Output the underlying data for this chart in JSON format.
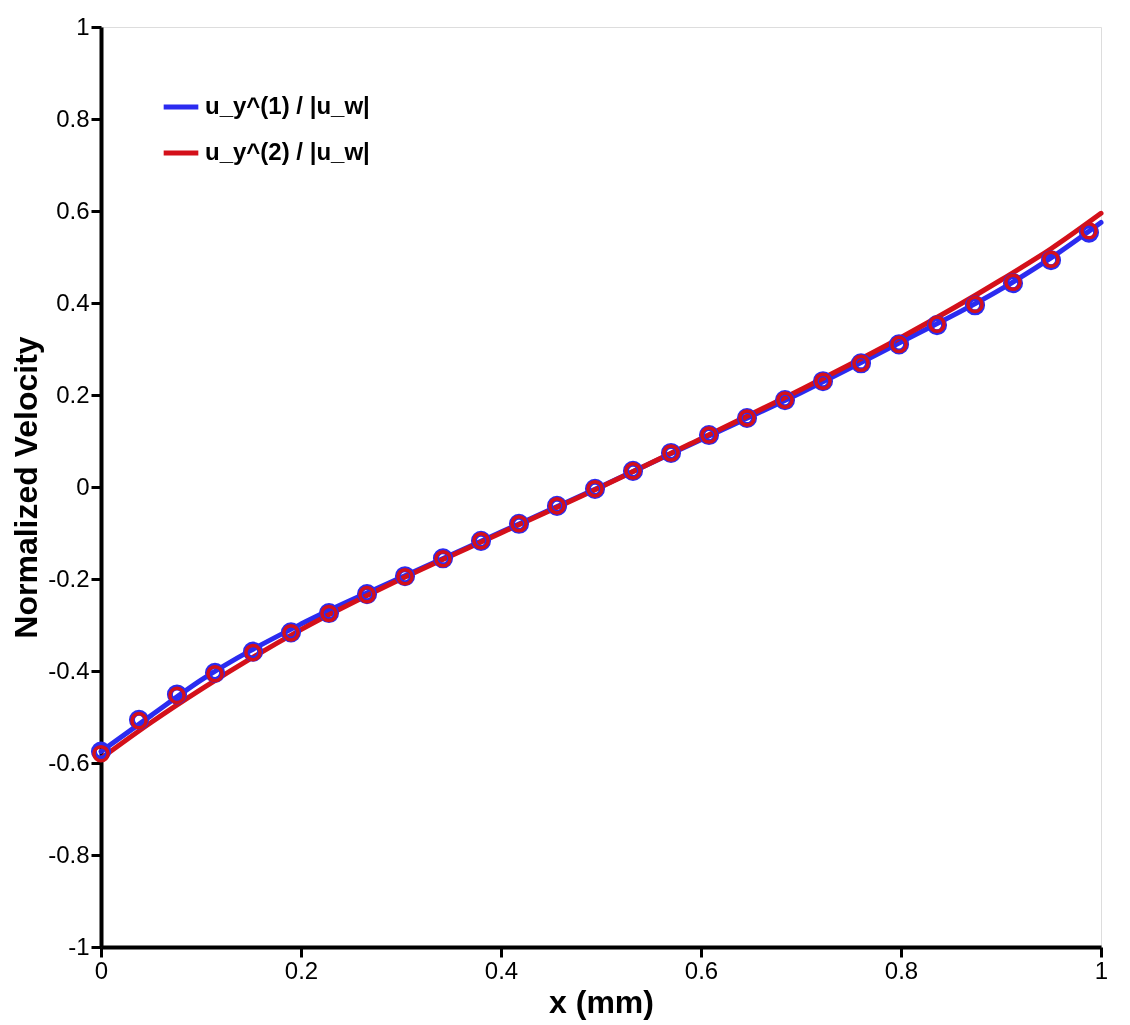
{
  "chart_data": {
    "type": "line",
    "xlabel": "x (mm)",
    "ylabel": "Normalized Velocity",
    "xlim": [
      0,
      1
    ],
    "ylim": [
      -1,
      1
    ],
    "xticks": [
      0,
      0.2,
      0.4,
      0.6,
      0.8,
      1
    ],
    "yticks": [
      -1,
      -0.8,
      -0.6,
      -0.4,
      -0.2,
      0,
      0.2,
      0.4,
      0.6,
      0.8,
      1
    ],
    "grid": false,
    "legend": "top left",
    "series": [
      {
        "name": "u_y^(1) / |u_w|",
        "color": "#2b2bf0",
        "line_style": "solid",
        "x": [
          0,
          0.05,
          0.1,
          0.2,
          0.3,
          0.4,
          0.5,
          0.6,
          0.7,
          0.8,
          0.9,
          0.95,
          1
        ],
        "values": [
          -0.575,
          -0.497,
          -0.42,
          -0.298,
          -0.197,
          -0.098,
          0.001,
          0.103,
          0.205,
          0.315,
          0.43,
          0.498,
          0.575
        ]
      },
      {
        "name": "u_y^(2) / |u_w|",
        "color": "#d4101a",
        "line_style": "solid",
        "x": [
          0,
          0.05,
          0.1,
          0.2,
          0.3,
          0.4,
          0.5,
          0.6,
          0.7,
          0.8,
          0.9,
          0.95,
          1
        ],
        "values": [
          -0.59,
          -0.512,
          -0.44,
          -0.31,
          -0.2,
          -0.1,
          0.0,
          0.105,
          0.212,
          0.325,
          0.45,
          0.518,
          0.595
        ]
      },
      {
        "color": "#2b2bf0",
        "type": "scatter",
        "marker": "circle",
        "x": [
          0,
          0.038,
          0.076,
          0.114,
          0.152,
          0.19,
          0.228,
          0.266,
          0.304,
          0.342,
          0.38,
          0.418,
          0.456,
          0.494,
          0.532,
          0.57,
          0.608,
          0.646,
          0.684,
          0.722,
          0.76,
          0.798,
          0.836,
          0.874,
          0.912,
          0.95,
          0.988
        ],
        "values": [
          -0.575,
          -0.506,
          -0.451,
          -0.404,
          -0.358,
          -0.316,
          -0.274,
          -0.233,
          -0.194,
          -0.155,
          -0.117,
          -0.08,
          -0.041,
          -0.004,
          0.035,
          0.074,
          0.113,
          0.15,
          0.189,
          0.23,
          0.269,
          0.31,
          0.352,
          0.395,
          0.443,
          0.493,
          0.553
        ]
      },
      {
        "color": "#d4101a",
        "type": "scatter",
        "marker": "circle",
        "x": [
          0,
          0.038,
          0.076,
          0.114,
          0.152,
          0.19,
          0.228,
          0.266,
          0.304,
          0.342,
          0.38,
          0.418,
          0.456,
          0.494,
          0.532,
          0.57,
          0.608,
          0.646,
          0.684,
          0.722,
          0.76,
          0.798,
          0.836,
          0.874,
          0.912,
          0.95,
          0.988
        ],
        "values": [
          -0.58,
          -0.508,
          -0.453,
          -0.406,
          -0.36,
          -0.317,
          -0.275,
          -0.234,
          -0.195,
          -0.156,
          -0.117,
          -0.08,
          -0.041,
          -0.004,
          0.035,
          0.074,
          0.113,
          0.15,
          0.189,
          0.23,
          0.269,
          0.31,
          0.354,
          0.397,
          0.445,
          0.495,
          0.557
        ]
      }
    ]
  }
}
